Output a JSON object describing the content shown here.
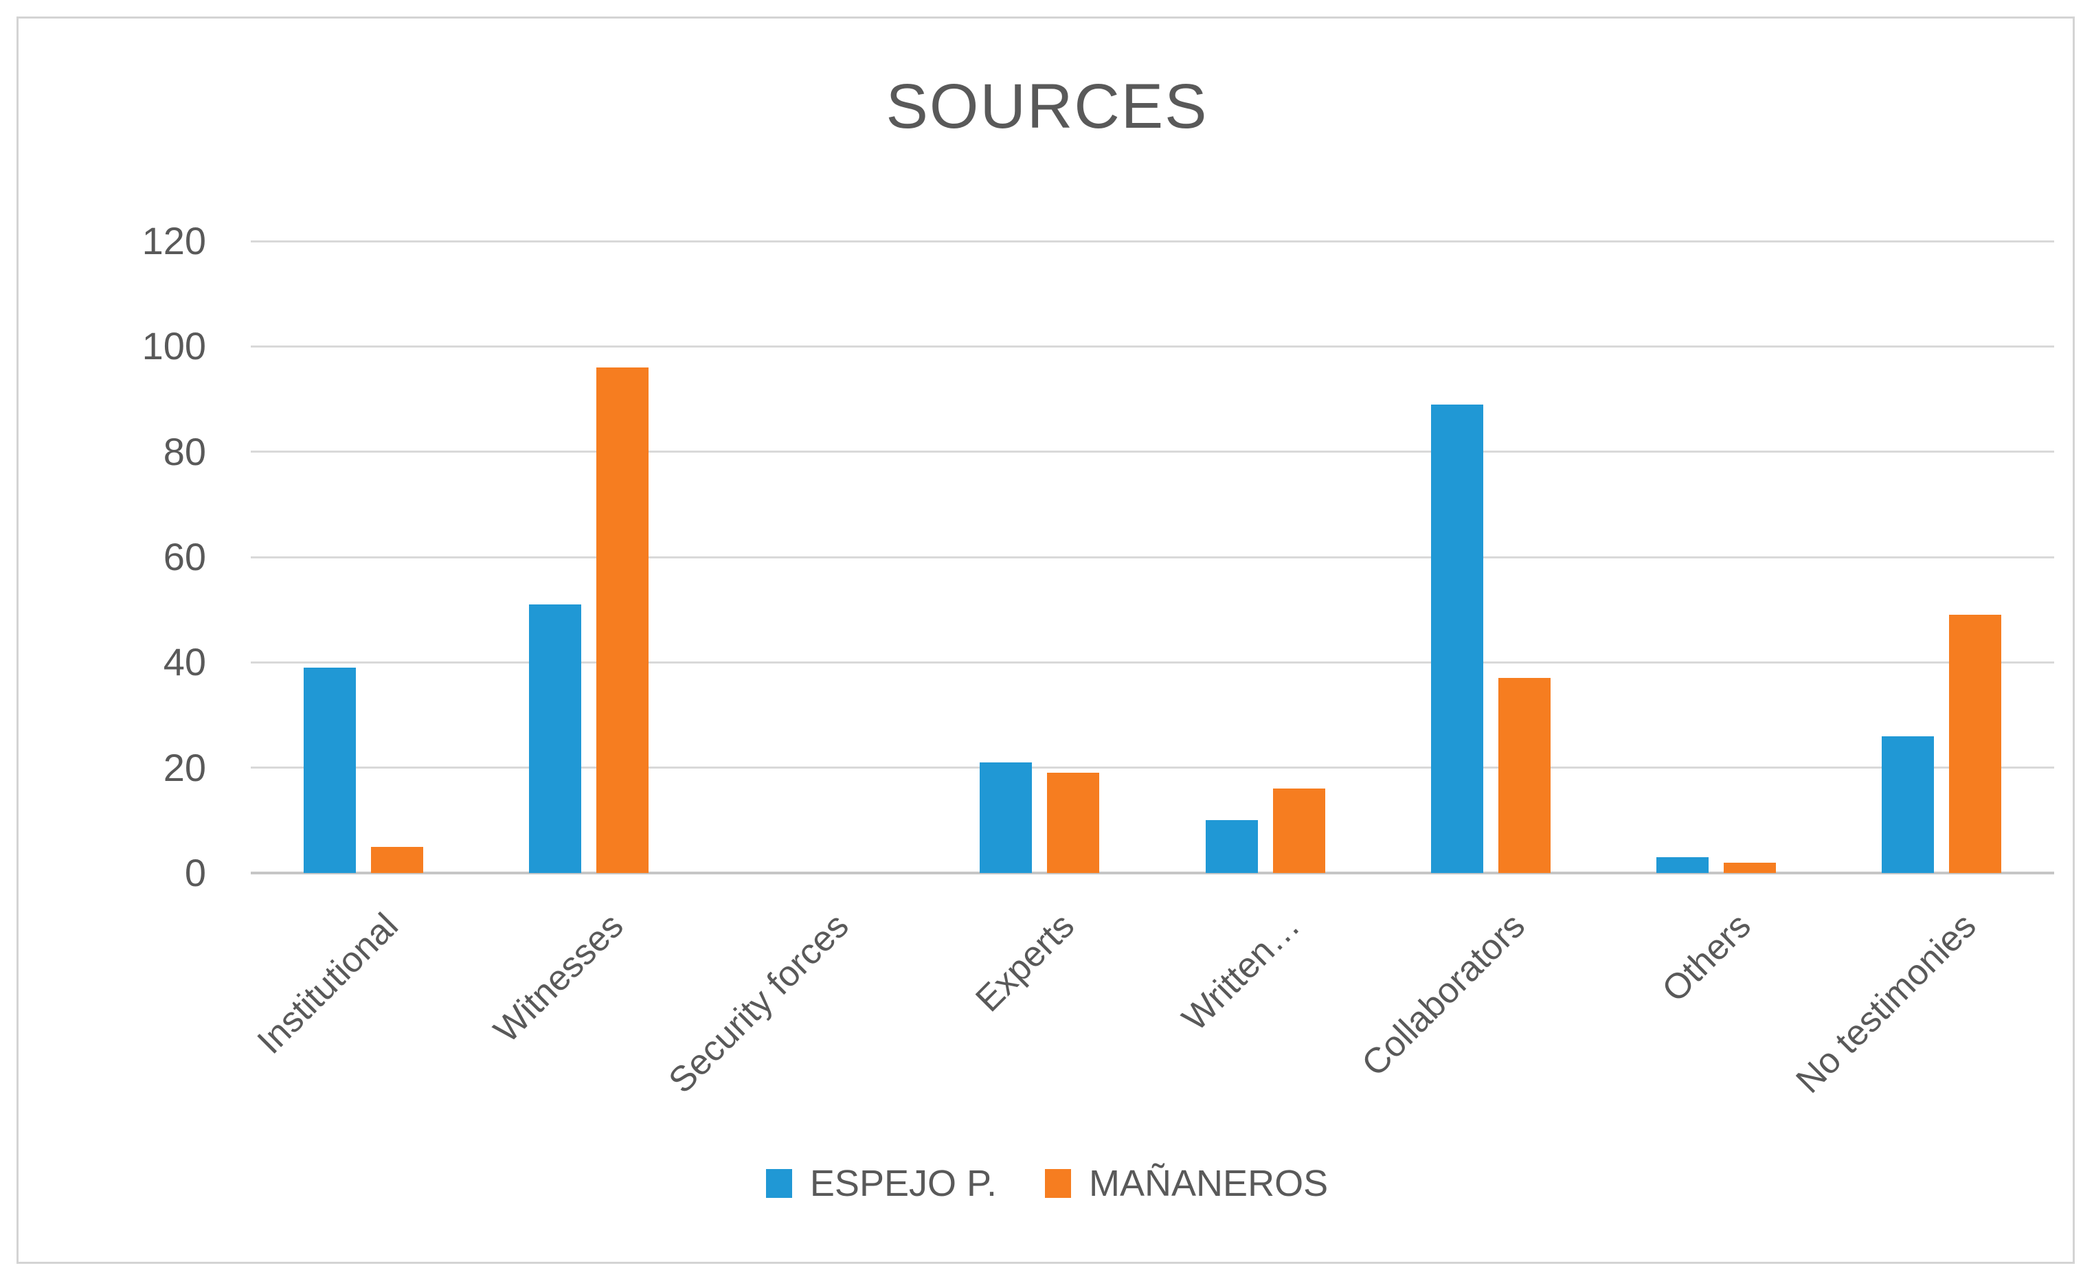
{
  "title": "SOURCES",
  "legend": {
    "items": [
      {
        "label": "ESPEJO P.",
        "color": "#2098D5"
      },
      {
        "label": "MAÑANEROS",
        "color": "#F67D20"
      }
    ]
  },
  "colors": {
    "series1": "#2098D5",
    "series2": "#F67D20",
    "grid": "#D9D9D9",
    "axis": "#C6C6C6",
    "text": "#595959",
    "frame_border": "#D4D4D4"
  },
  "chart_data": {
    "type": "bar",
    "title": "SOURCES",
    "categories": [
      "Institutional",
      "Witnesses",
      "Security forces",
      "Experts",
      "Written…",
      "Collaborators",
      "Others",
      "No testimonies"
    ],
    "series": [
      {
        "name": "ESPEJO P.",
        "color": "#2098D5",
        "values": [
          39,
          51,
          0,
          21,
          10,
          89,
          3,
          26
        ]
      },
      {
        "name": "MAÑANEROS",
        "color": "#F67D20",
        "values": [
          5,
          96,
          0,
          19,
          16,
          37,
          2,
          49
        ]
      }
    ],
    "xlabel": "",
    "ylabel": "",
    "ylim": [
      0,
      120
    ],
    "yticks": [
      0,
      20,
      40,
      60,
      80,
      100,
      120
    ],
    "grid": "horizontal",
    "legend_position": "bottom"
  }
}
